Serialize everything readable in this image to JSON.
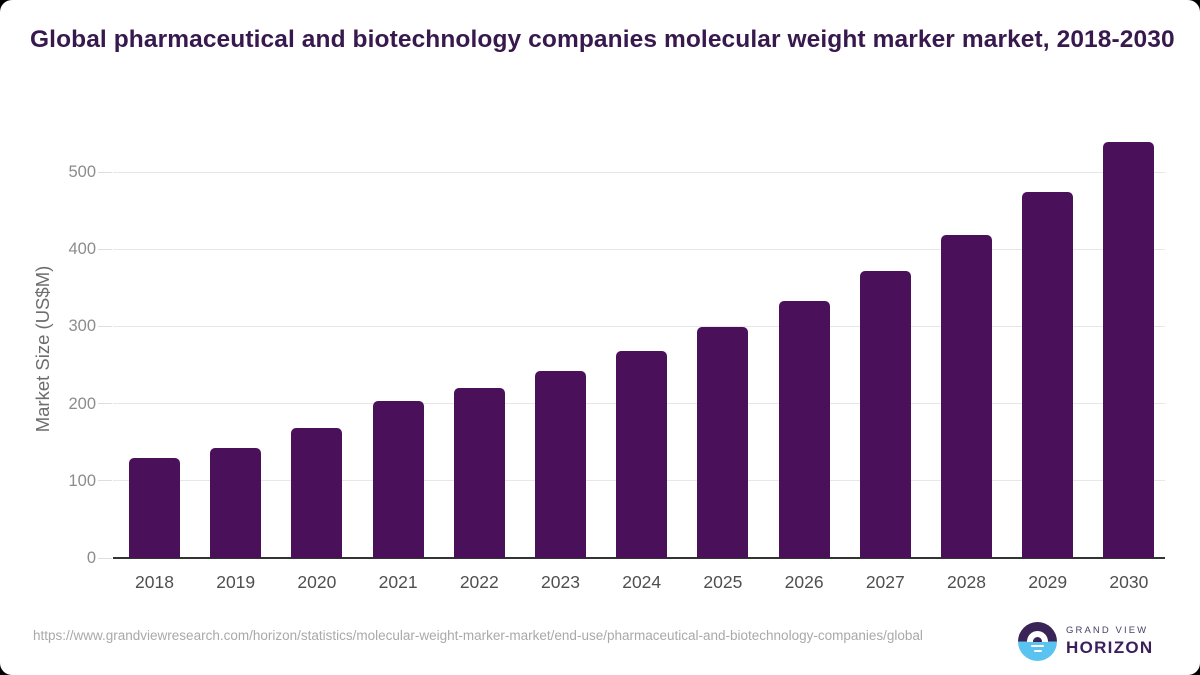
{
  "title": "Global pharmaceutical and biotechnology companies molecular weight marker market, 2018-2030",
  "chart_data": {
    "type": "bar",
    "categories": [
      "2018",
      "2019",
      "2020",
      "2021",
      "2022",
      "2023",
      "2024",
      "2025",
      "2026",
      "2027",
      "2028",
      "2029",
      "2030"
    ],
    "values": [
      129,
      143,
      168,
      203,
      220,
      242,
      268,
      299,
      333,
      372,
      419,
      474,
      539
    ],
    "title": "Global pharmaceutical and biotechnology companies molecular weight marker market, 2018-2030",
    "xlabel": "",
    "ylabel": "Market Size (US$M)",
    "yticks": [
      0,
      100,
      200,
      300,
      400,
      500
    ],
    "ylim": [
      0,
      550
    ],
    "grid": true,
    "legend": "none",
    "bar_color": "#4a1059"
  },
  "footer": {
    "source_url": "https://www.grandviewresearch.com/horizon/statistics/molecular-weight-marker-market/end-use/pharmaceutical-and-biotechnology-companies/global",
    "logo": {
      "brand_top": "GRAND VIEW",
      "brand_bottom": "HORIZON"
    }
  },
  "colors": {
    "bar": "#4a1059",
    "title": "#38194e",
    "gridline": "#e7e7e7",
    "axis_line": "#333333",
    "logo_purple": "#3a2356",
    "logo_blue": "#5bc3ef"
  }
}
